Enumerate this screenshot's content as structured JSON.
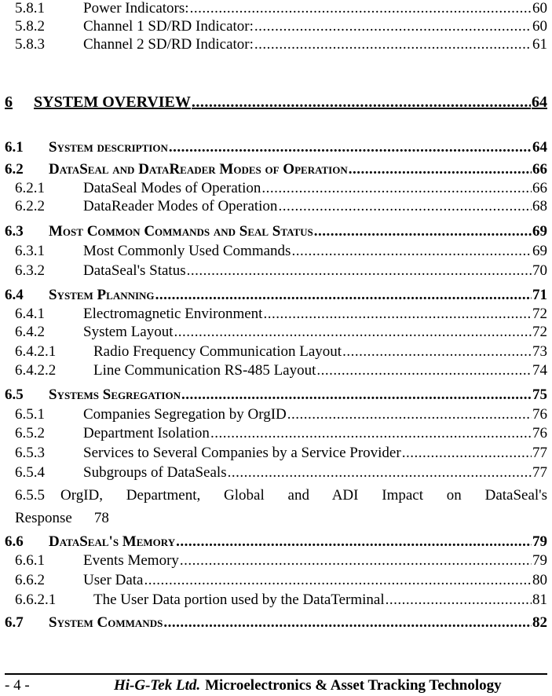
{
  "toc": [
    {
      "level": "sub",
      "num": "5.8.1",
      "text": "Power Indicators:",
      "page": "60"
    },
    {
      "level": "sub",
      "num": "5.8.2",
      "text": "Channel 1 SD/RD Indicator:",
      "page": "60"
    },
    {
      "level": "sub",
      "num": "5.8.3",
      "text": "Channel 2 SD/RD Indicator:",
      "page": "61"
    },
    {
      "level": "chap",
      "num": "6",
      "text": "SYSTEM OVERVIEW",
      "page": "64"
    },
    {
      "level": "main",
      "num": "6.1",
      "text": "System description",
      "page": "64"
    },
    {
      "level": "main",
      "num": "6.2",
      "text": "DataSeal and DataReader Modes of Operation",
      "page": "66"
    },
    {
      "level": "sub",
      "num": "6.2.1",
      "text": "DataSeal Modes of Operation",
      "page": "66"
    },
    {
      "level": "sub",
      "num": "6.2.2",
      "text": "DataReader Modes of Operation",
      "page": "68"
    },
    {
      "level": "main",
      "num": "6.3",
      "text": "Most Common Commands and Seal Status",
      "page": "69"
    },
    {
      "level": "sub",
      "num": "6.3.1",
      "text": "Most Commonly Used Commands",
      "page": "69"
    },
    {
      "level": "sub",
      "num": "6.3.2",
      "text": "DataSeal's Status",
      "page": "70"
    },
    {
      "level": "main",
      "num": "6.4",
      "text": "System Planning",
      "page": "71"
    },
    {
      "level": "sub",
      "num": "6.4.1",
      "text": "Electromagnetic Environment",
      "page": "72"
    },
    {
      "level": "sub",
      "num": "6.4.2",
      "text": "System Layout",
      "page": "72"
    },
    {
      "level": "sub4",
      "num": "6.4.2.1",
      "text": "Radio Frequency Communication Layout",
      "page": "73"
    },
    {
      "level": "sub4",
      "num": "6.4.2.2",
      "text": "Line Communication RS-485 Layout",
      "page": "74"
    },
    {
      "level": "main",
      "num": "6.5",
      "text": "Systems Segregation",
      "page": "75"
    },
    {
      "level": "sub",
      "num": "6.5.1",
      "text": "Companies Segregation by OrgID",
      "page": "76"
    },
    {
      "level": "sub",
      "num": "6.5.2",
      "text": "Department Isolation",
      "page": "76"
    },
    {
      "level": "sub",
      "num": "6.5.3",
      "text": "Services to Several Companies by a Service Provider",
      "page": "77"
    },
    {
      "level": "sub",
      "num": "6.5.4",
      "text": "Subgroups of DataSeals",
      "page": "77"
    },
    {
      "level": "wrap",
      "num": "6.5.5",
      "text": "OrgID, Department, Global and ADI Impact on DataSeal's",
      "text2": "Response",
      "page": "78"
    },
    {
      "level": "main",
      "num": "6.6",
      "text": "DataSeal's Memory",
      "page": "79"
    },
    {
      "level": "sub",
      "num": "6.6.1",
      "text": "Events Memory",
      "page": "79"
    },
    {
      "level": "sub",
      "num": "6.6.2",
      "text": "User Data",
      "page": "80"
    },
    {
      "level": "sub4",
      "num": "6.6.2.1",
      "text": "The User Data portion used by the DataTerminal",
      "page": "81"
    },
    {
      "level": "main",
      "num": "6.7",
      "text": "System Commands",
      "page": "82"
    }
  ],
  "footer": {
    "page_number": "- 4 -",
    "company": "Hi-G-Tek Ltd.",
    "tagline": "Microelectronics & Asset Tracking Technology"
  }
}
